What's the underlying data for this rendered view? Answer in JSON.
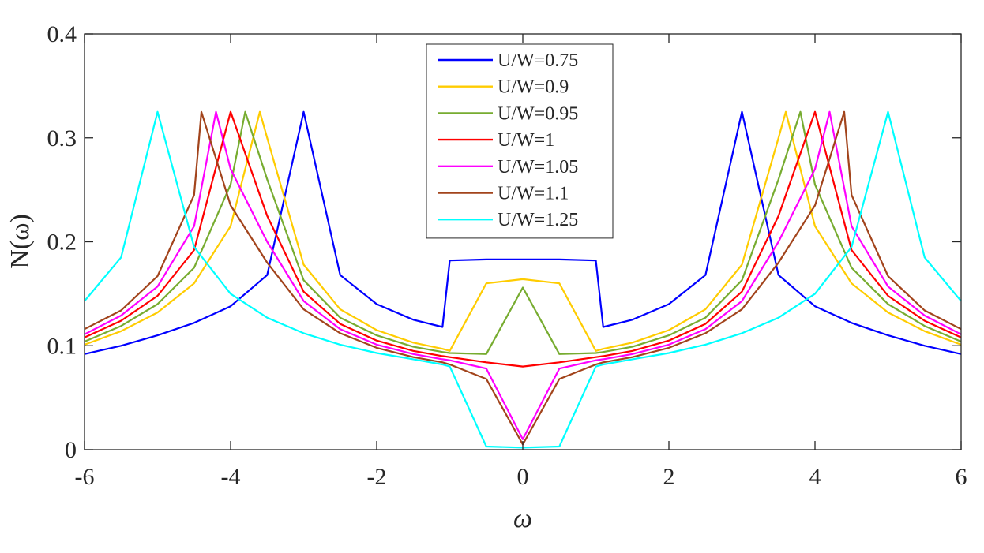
{
  "chart_data": {
    "type": "line",
    "title": "",
    "xlabel": "ω",
    "ylabel": "N(ω)",
    "xlim": [
      -6,
      6
    ],
    "ylim": [
      0,
      0.4
    ],
    "xticks": [
      -6,
      -4,
      -2,
      0,
      2,
      4,
      6
    ],
    "xtick_labels": [
      "-6",
      "-4",
      "-2",
      "0",
      "2",
      "4",
      "6"
    ],
    "yticks": [
      0,
      0.1,
      0.2,
      0.3,
      0.4
    ],
    "ytick_labels": [
      "0",
      "0.1",
      "0.2",
      "0.3",
      "0.4"
    ],
    "grid": false,
    "legend_position": "top-center",
    "x": [
      -6,
      -5.5,
      -5,
      -4.5,
      -4,
      -3.5,
      -3,
      -2.5,
      -2,
      -1.5,
      -1.1,
      -1,
      -0.5,
      0,
      0.5,
      1,
      1.1,
      1.5,
      2,
      2.5,
      3,
      3.5,
      4,
      4.5,
      5,
      5.5,
      6
    ],
    "series": [
      {
        "name": "U/W=0.75",
        "color": "#0000ff",
        "peak": {
          "x": [
            -3,
            3
          ],
          "y": 0.325
        },
        "values": [
          0.092,
          0.1,
          0.11,
          0.122,
          0.138,
          0.168,
          0.325,
          0.168,
          0.14,
          0.125,
          0.118,
          0.182,
          0.183,
          0.183,
          0.183,
          0.182,
          0.118,
          0.125,
          0.14,
          0.168,
          0.325,
          0.168,
          0.138,
          0.122,
          0.11,
          0.1,
          0.092
        ]
      },
      {
        "name": "U/W=0.9",
        "color": "#ffcc00",
        "peak": {
          "x": [
            -3.6,
            3.6
          ],
          "y": 0.325
        },
        "values": [
          0.101,
          0.114,
          0.132,
          0.16,
          0.215,
          0.3,
          0.178,
          0.135,
          0.115,
          0.103,
          0.097,
          0.095,
          0.16,
          0.164,
          0.16,
          0.095,
          0.097,
          0.103,
          0.115,
          0.135,
          0.178,
          0.3,
          0.215,
          0.16,
          0.132,
          0.114,
          0.101
        ]
      },
      {
        "name": "U/W=0.95",
        "color": "#77ac30",
        "peak": {
          "x": [
            -3.8,
            3.8
          ],
          "y": 0.325
        },
        "values": [
          0.104,
          0.119,
          0.14,
          0.175,
          0.255,
          0.26,
          0.163,
          0.127,
          0.11,
          0.099,
          0.094,
          0.093,
          0.092,
          0.156,
          0.092,
          0.093,
          0.094,
          0.099,
          0.11,
          0.127,
          0.163,
          0.26,
          0.255,
          0.175,
          0.14,
          0.119,
          0.104
        ]
      },
      {
        "name": "U/W=1",
        "color": "#ff0000",
        "peak": {
          "x": [
            -4,
            4
          ],
          "y": 0.325
        },
        "values": [
          0.108,
          0.124,
          0.148,
          0.192,
          0.325,
          0.225,
          0.152,
          0.121,
          0.105,
          0.095,
          0.09,
          0.089,
          0.084,
          0.08,
          0.084,
          0.089,
          0.09,
          0.095,
          0.105,
          0.121,
          0.152,
          0.225,
          0.325,
          0.192,
          0.148,
          0.124,
          0.108
        ]
      },
      {
        "name": "U/W=1.05",
        "color": "#ff00ff",
        "peak": {
          "x": [
            -4.2,
            4.2
          ],
          "y": 0.325
        },
        "values": [
          0.111,
          0.129,
          0.157,
          0.215,
          0.27,
          0.2,
          0.143,
          0.116,
          0.101,
          0.092,
          0.087,
          0.086,
          0.078,
          0.01,
          0.078,
          0.086,
          0.087,
          0.092,
          0.101,
          0.116,
          0.143,
          0.2,
          0.27,
          0.215,
          0.157,
          0.129,
          0.111
        ]
      },
      {
        "name": "U/W=1.1",
        "color": "#a2441c",
        "peak": {
          "x": [
            -4.4,
            4.4
          ],
          "y": 0.325
        },
        "values": [
          0.116,
          0.134,
          0.167,
          0.245,
          0.235,
          0.18,
          0.135,
          0.112,
          0.098,
          0.089,
          0.084,
          0.082,
          0.068,
          0.005,
          0.068,
          0.082,
          0.084,
          0.089,
          0.098,
          0.112,
          0.135,
          0.18,
          0.235,
          0.245,
          0.167,
          0.134,
          0.116
        ]
      },
      {
        "name": "U/W=1.25",
        "color": "#00ffff",
        "peak": {
          "x": [
            -5,
            5
          ],
          "y": 0.325
        },
        "values": [
          0.143,
          0.185,
          0.325,
          0.195,
          0.15,
          0.127,
          0.112,
          0.101,
          0.093,
          0.087,
          0.082,
          0.08,
          0.003,
          0.002,
          0.003,
          0.08,
          0.082,
          0.087,
          0.093,
          0.101,
          0.112,
          0.127,
          0.15,
          0.195,
          0.325,
          0.185,
          0.143
        ]
      }
    ]
  }
}
